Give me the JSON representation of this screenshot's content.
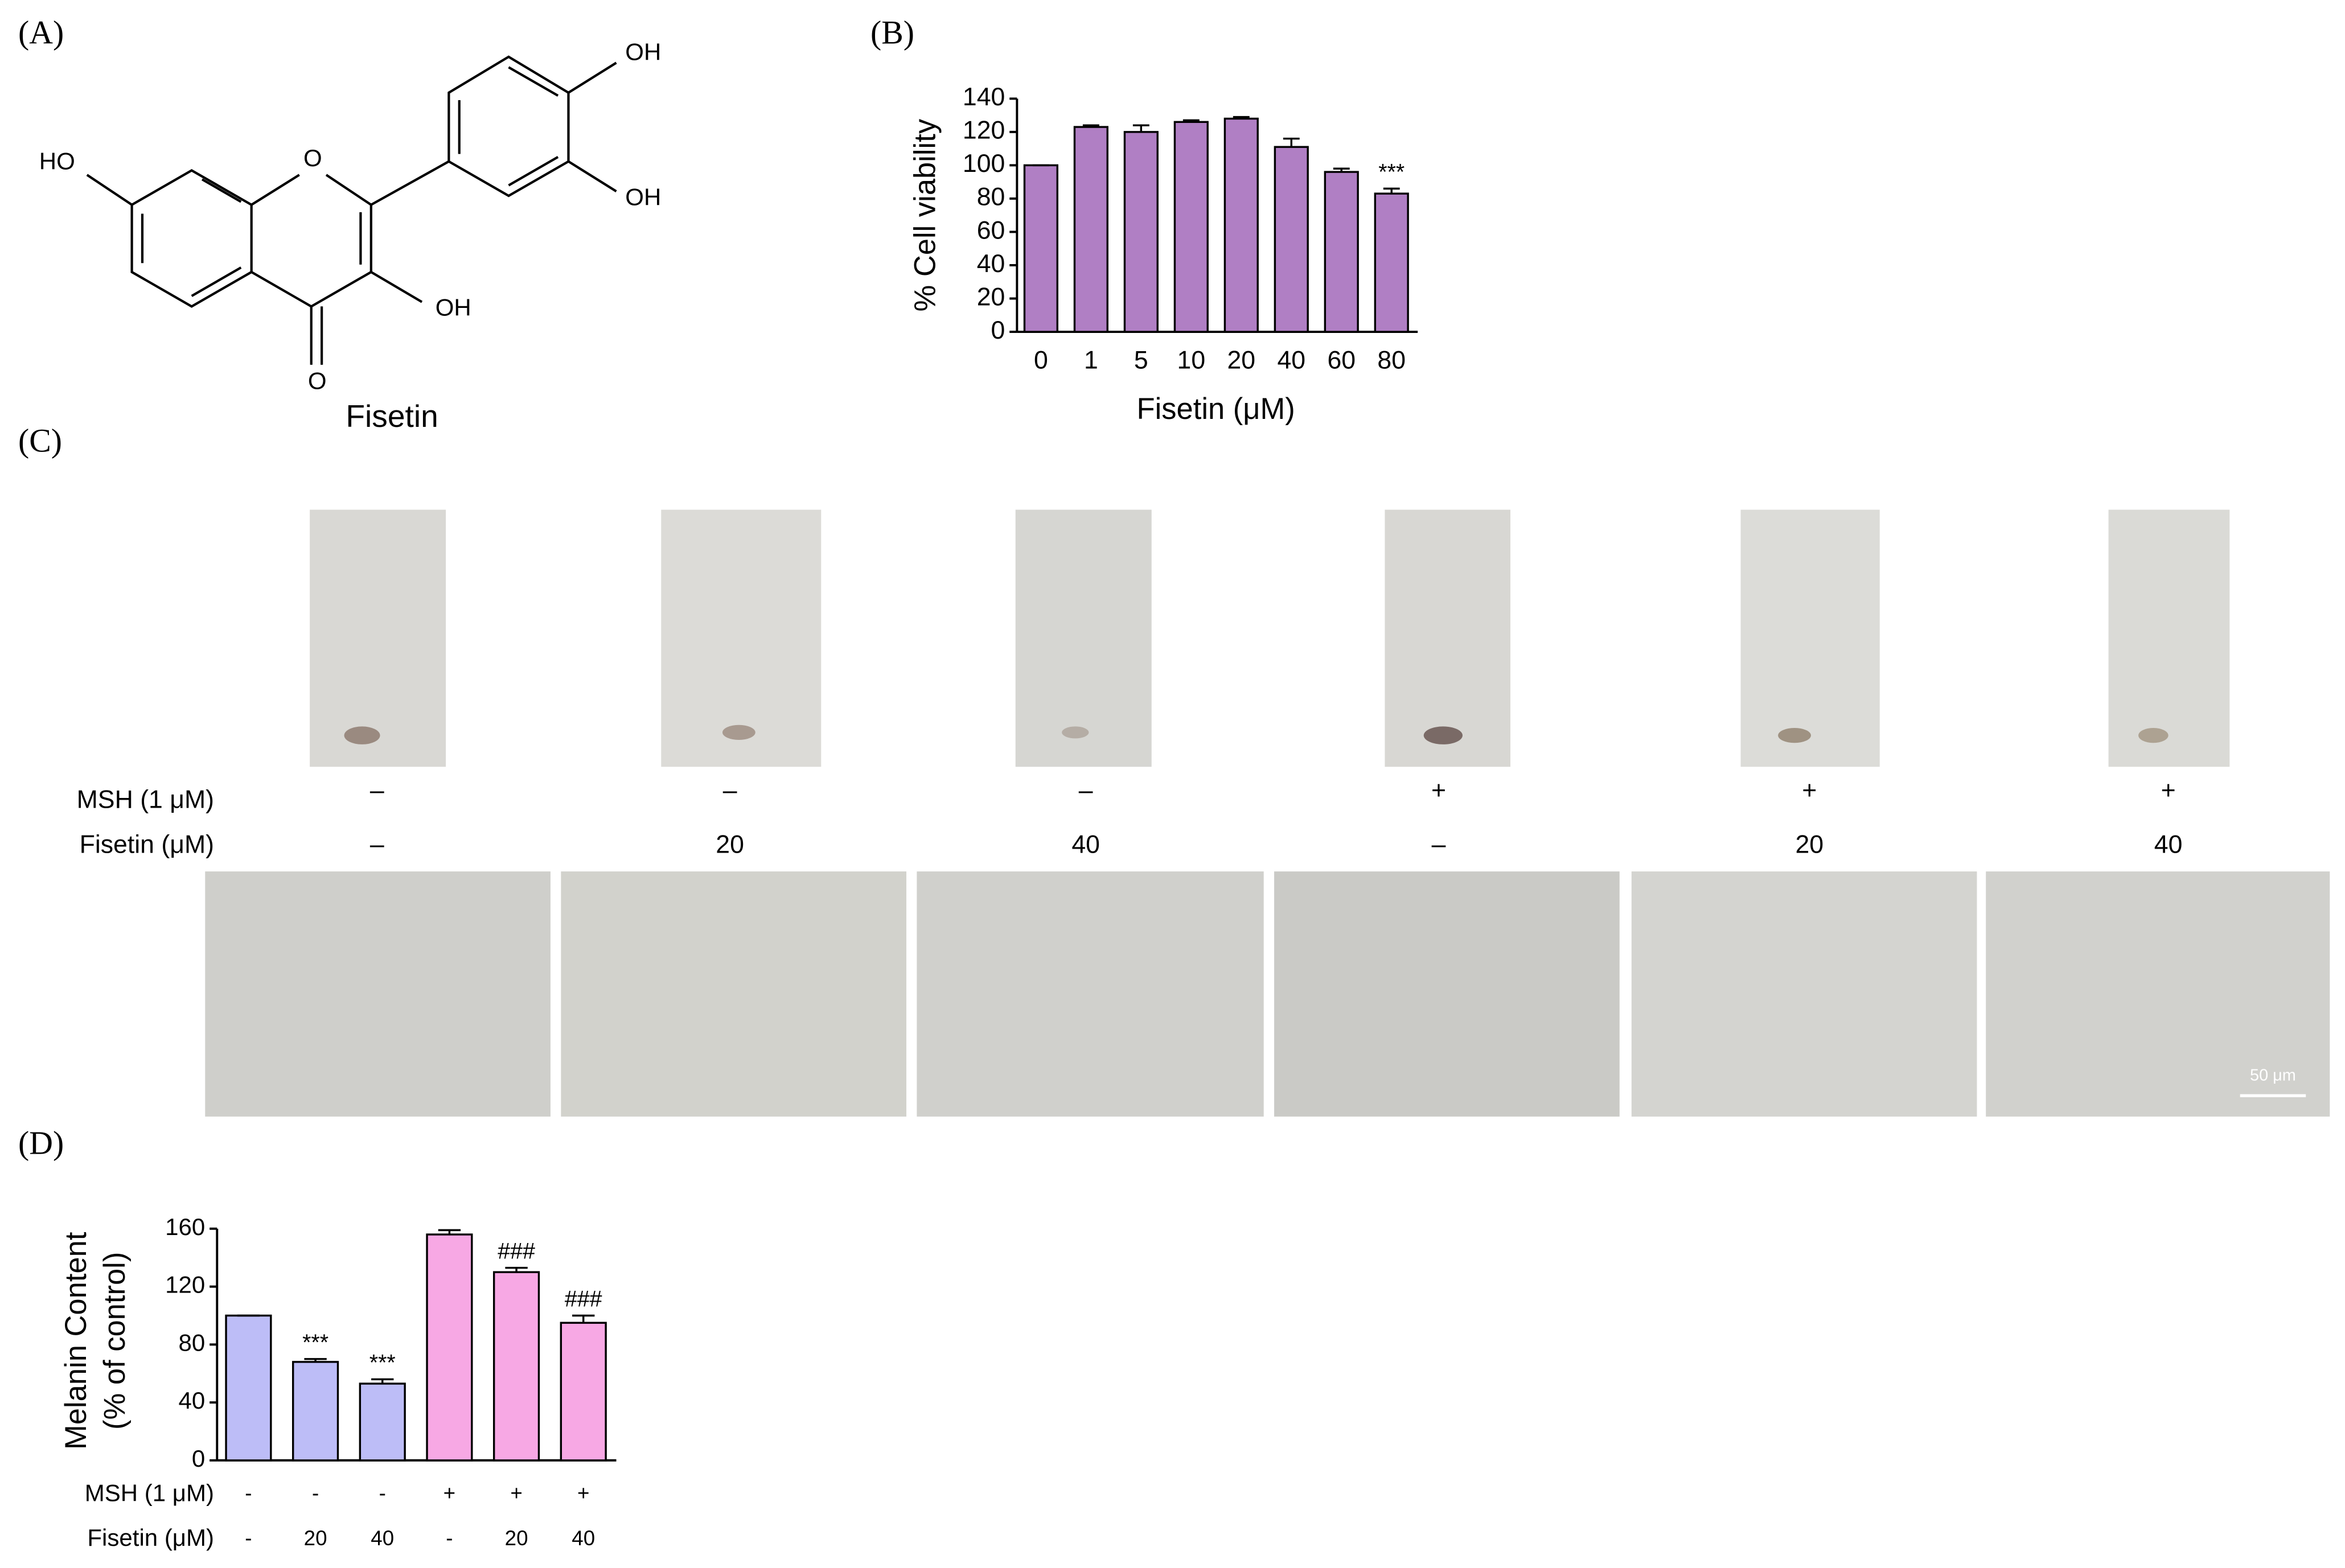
{
  "panels": [
    "(A)",
    "(B)",
    "(C)",
    "(D)"
  ],
  "structure": {
    "name": "Fisetin",
    "labels": [
      "HO",
      "O",
      "OH",
      "OH",
      "OH",
      "O"
    ]
  },
  "panel_c": {
    "rows": [
      {
        "label": "MSH (1 μM)",
        "values": [
          "–",
          "–",
          "–",
          "+",
          "+",
          "+"
        ]
      },
      {
        "label": "Fisetin (μM)",
        "values": [
          "–",
          "20",
          "40",
          "–",
          "20",
          "40"
        ]
      }
    ],
    "scale_bar": "50 μm"
  },
  "chart_data": [
    {
      "type": "bar",
      "xlabel": "Fisetin (μM)",
      "ylabel": [
        "% Cell viability"
      ],
      "categories": [
        "0",
        "1",
        "5",
        "10",
        "20",
        "40",
        "60",
        "80"
      ],
      "values": [
        100,
        123,
        120,
        126,
        128,
        111,
        96,
        83
      ],
      "errors": [
        0,
        1,
        4,
        1,
        1,
        5,
        2,
        3
      ],
      "annotations": [
        {
          "index": 7,
          "text": "***"
        }
      ],
      "colors": [
        "#b07fc4",
        "#b07fc4",
        "#b07fc4",
        "#b07fc4",
        "#b07fc4",
        "#b07fc4",
        "#b07fc4",
        "#b07fc4"
      ],
      "ylim": [
        0,
        140
      ],
      "yticks": [
        0,
        20,
        40,
        60,
        80,
        100,
        120,
        140
      ]
    },
    {
      "type": "bar",
      "ylabel": [
        "Melanin Content",
        "(% of control)"
      ],
      "rows": [
        {
          "label": "MSH (1 μM)",
          "values": [
            "-",
            "-",
            "-",
            "+",
            "+",
            "+"
          ]
        },
        {
          "label": "Fisetin (μM)",
          "values": [
            "-",
            "20",
            "40",
            "-",
            "20",
            "40"
          ]
        }
      ],
      "values": [
        100,
        68,
        53,
        156,
        130,
        95
      ],
      "errors": [
        0,
        2,
        3,
        3,
        3,
        5
      ],
      "annotations": [
        {
          "index": 1,
          "text": "***"
        },
        {
          "index": 2,
          "text": "***"
        },
        {
          "index": 4,
          "text": "###"
        },
        {
          "index": 5,
          "text": "###"
        }
      ],
      "colors": [
        "#bdbdf7",
        "#bdbdf7",
        "#bdbdf7",
        "#f7a8e4",
        "#f7a8e4",
        "#f7a8e4"
      ],
      "ylim": [
        0,
        160
      ],
      "yticks": [
        0,
        40,
        80,
        120,
        160
      ]
    }
  ]
}
